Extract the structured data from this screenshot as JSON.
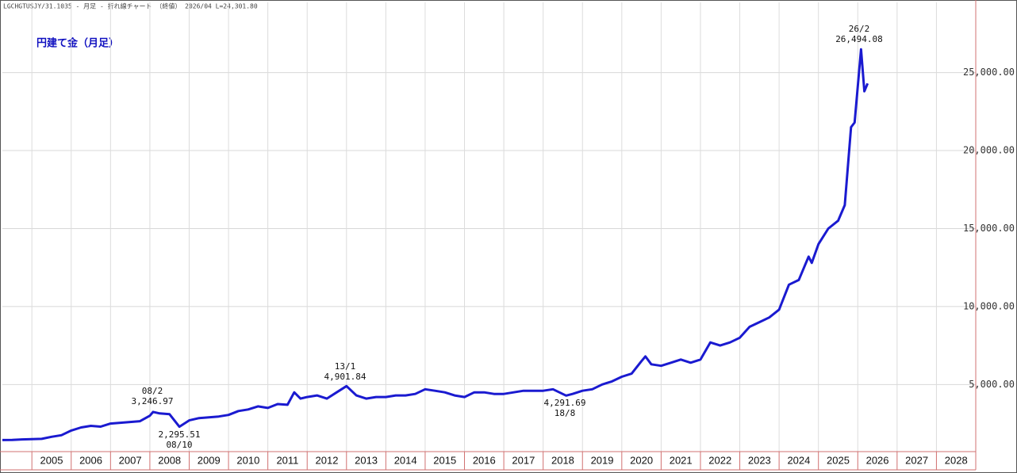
{
  "chart_data": {
    "type": "line",
    "header": "LGCHGTUSJY/31.1035 - 月足 - 折れ線チャート （終値） 2026/04 L=24,301.80",
    "title": "円建て金（月足）",
    "x": [
      2004.25,
      2004.5,
      2004.75,
      2005.0,
      2005.25,
      2005.5,
      2005.75,
      2006.0,
      2006.25,
      2006.5,
      2006.75,
      2007.0,
      2007.25,
      2007.5,
      2007.75,
      2008.0,
      2008.083,
      2008.25,
      2008.5,
      2008.75,
      2009.0,
      2009.25,
      2009.5,
      2009.75,
      2010.0,
      2010.25,
      2010.5,
      2010.75,
      2011.0,
      2011.25,
      2011.5,
      2011.67,
      2011.83,
      2012.0,
      2012.25,
      2012.5,
      2012.75,
      2013.0,
      2013.25,
      2013.5,
      2013.75,
      2014.0,
      2014.25,
      2014.5,
      2014.75,
      2015.0,
      2015.25,
      2015.5,
      2015.75,
      2016.0,
      2016.25,
      2016.5,
      2016.75,
      2017.0,
      2017.25,
      2017.5,
      2017.75,
      2018.0,
      2018.25,
      2018.583,
      2018.75,
      2019.0,
      2019.25,
      2019.5,
      2019.75,
      2020.0,
      2020.25,
      2020.5,
      2020.6,
      2020.75,
      2021.0,
      2021.25,
      2021.5,
      2021.75,
      2022.0,
      2022.25,
      2022.5,
      2022.75,
      2023.0,
      2023.25,
      2023.5,
      2023.75,
      2024.0,
      2024.25,
      2024.5,
      2024.75,
      2024.83,
      2025.0,
      2025.25,
      2025.5,
      2025.67,
      2025.83,
      2025.92,
      2026.083,
      2026.167,
      2026.25
    ],
    "values": [
      1440,
      1450,
      1480,
      1500,
      1520,
      1650,
      1750,
      2050,
      2250,
      2350,
      2300,
      2500,
      2550,
      2600,
      2650,
      3000,
      3246.97,
      3150,
      3100,
      2295.51,
      2700,
      2850,
      2900,
      2950,
      3050,
      3300,
      3400,
      3600,
      3500,
      3750,
      3700,
      4500,
      4100,
      4200,
      4300,
      4100,
      4500,
      4901.84,
      4300,
      4100,
      4200,
      4200,
      4300,
      4300,
      4400,
      4700,
      4600,
      4500,
      4300,
      4200,
      4500,
      4500,
      4400,
      4400,
      4500,
      4600,
      4600,
      4600,
      4700,
      4291.69,
      4400,
      4600,
      4700,
      5000,
      5200,
      5500,
      5700,
      6500,
      6800,
      6300,
      6200,
      6400,
      6600,
      6400,
      6600,
      7700,
      7500,
      7700,
      8000,
      8700,
      9000,
      9300,
      9800,
      11400,
      11700,
      13200,
      12800,
      14000,
      15000,
      15500,
      16500,
      21500,
      21800,
      26494.08,
      23800,
      24301.8
    ],
    "color": "#1a1ad0",
    "xlim": [
      2004.25,
      2029.0
    ],
    "xticks": [
      2005,
      2006,
      2007,
      2008,
      2009,
      2010,
      2011,
      2012,
      2013,
      2014,
      2015,
      2016,
      2017,
      2018,
      2019,
      2020,
      2021,
      2022,
      2023,
      2024,
      2025,
      2026,
      2027,
      2028
    ],
    "ylim": [
      700,
      29500
    ],
    "yticks": [
      {
        "value": 5000,
        "label": "5,000.00"
      },
      {
        "value": 10000,
        "label": "10,000.00"
      },
      {
        "value": 15000,
        "label": "15,000.00"
      },
      {
        "value": 20000,
        "label": "20,000.00"
      },
      {
        "value": 25000,
        "label": "25,000.00"
      }
    ],
    "grid": true,
    "annotations": [
      [
        "08/2",
        "3,246.97"
      ],
      [
        "2,295.51",
        "08/10"
      ],
      [
        "13/1",
        "4,901.84"
      ],
      [
        "4,291.69",
        "18/8"
      ],
      [
        "26/2",
        "26,494.08"
      ]
    ]
  }
}
